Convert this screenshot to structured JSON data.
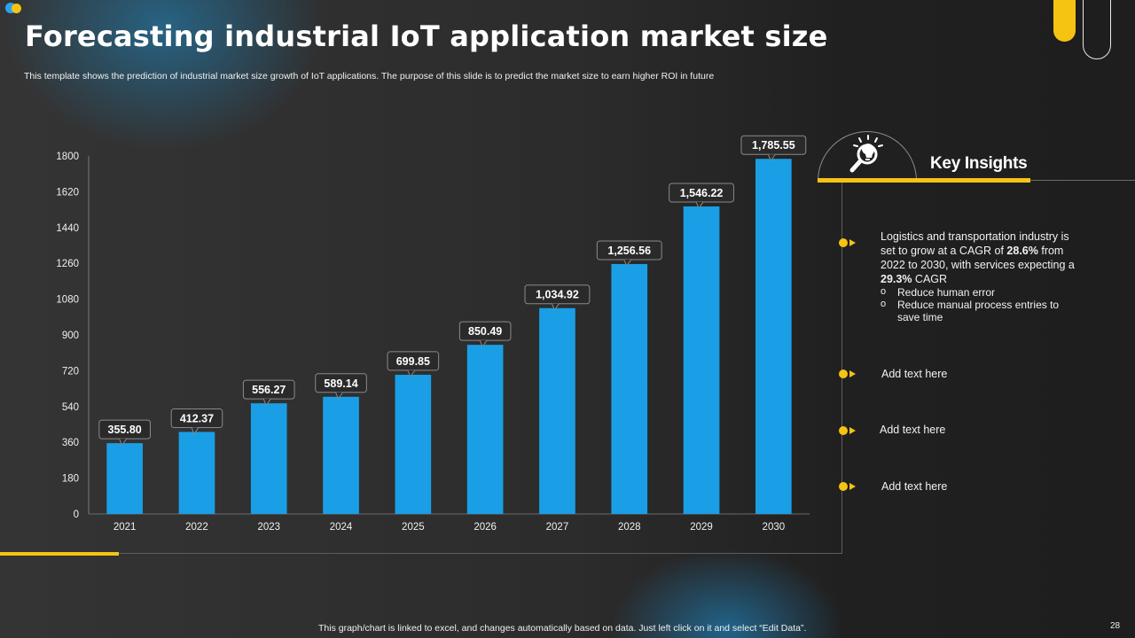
{
  "slide": {
    "title": "Forecasting industrial IoT application market size",
    "subtitle": "This template shows the prediction of industrial market size growth of IoT applications. The purpose of this slide is to predict the market size to earn higher ROI in future",
    "footer_note": "This graph/chart is linked to excel, and changes automatically based on data. Just left click on it and select “Edit Data”.",
    "page_number": "28"
  },
  "colors": {
    "accent_yellow": "#f5c312",
    "bar_blue": "#1a9fe6",
    "logo_blue": "#2aa4ee"
  },
  "insights": {
    "title": "Key Insights",
    "icon": "lightbulb-magnifier-icon",
    "main": {
      "t1": "Logistics and transportation industry is set to grow at a CAGR of ",
      "v1": "28.6%",
      "t2": " from 2022 to 2030, with services expecting a ",
      "v2": "29.3%",
      "t3": " CAGR",
      "sub_items": [
        "Reduce human error",
        "Reduce manual process entries to save time"
      ]
    },
    "items": [
      "Add text here",
      "Add text here",
      "Add text here"
    ]
  },
  "chart_data": {
    "type": "bar",
    "title": "",
    "xlabel": "",
    "ylabel": "",
    "categories": [
      "2021",
      "2022",
      "2023",
      "2024",
      "2025",
      "2026",
      "2027",
      "2028",
      "2029",
      "2030"
    ],
    "values": [
      355.8,
      412.37,
      556.27,
      589.14,
      699.85,
      850.49,
      1034.92,
      1256.56,
      1546.22,
      1785.55
    ],
    "data_labels": [
      "355.80",
      "412.37",
      "556.27",
      "589.14",
      "699.85",
      "850.49",
      "1,034.92",
      "1,256.56",
      "1,546.22",
      "1,785.55"
    ],
    "ylim": [
      0,
      1800
    ],
    "yticks": [
      0,
      180,
      360,
      540,
      720,
      900,
      1080,
      1260,
      1440,
      1620,
      1800
    ],
    "grid": false,
    "legend": "none"
  }
}
